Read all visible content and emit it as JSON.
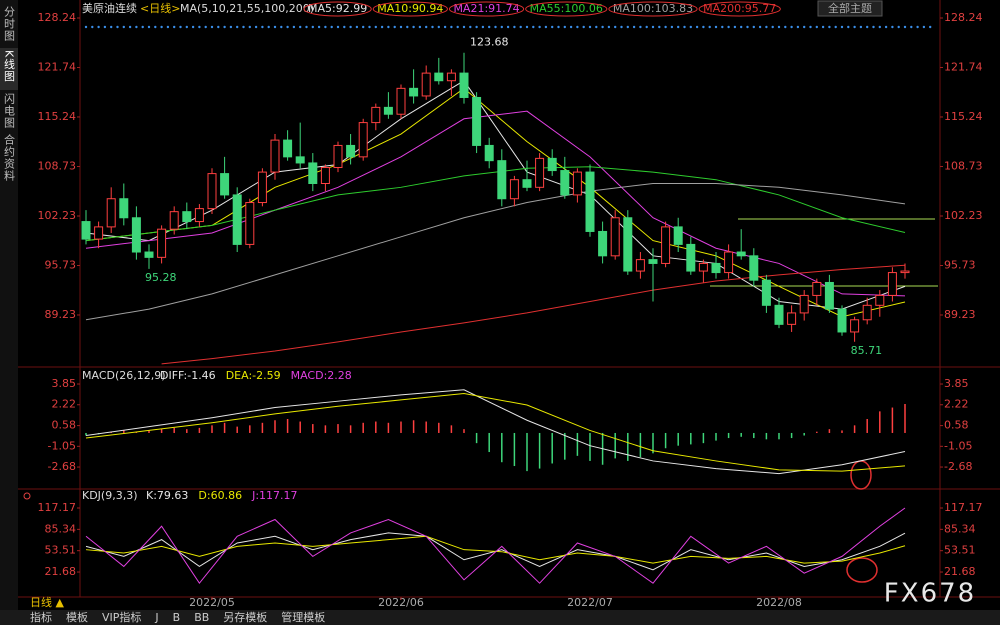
{
  "header": {
    "symbol": "美原油连续",
    "period": "<日线>",
    "indicator": "MA(5,10,21,55,100,200)",
    "theme": "全部主题"
  },
  "sidebar": [
    "分时图",
    "K线图",
    "闪电图",
    "合约资料"
  ],
  "toolbar": [
    "日线 ▲",
    "指标",
    "模板",
    "VIP指标",
    "J",
    "B",
    "BB",
    "另存模板",
    "管理模板"
  ],
  "watermark": "FX678",
  "chart_data": [
    {
      "type": "candlestick",
      "ylim": [
        82.66,
        129.29
      ],
      "yticks": [
        128.24,
        121.74,
        115.24,
        108.73,
        102.23,
        95.73,
        89.23
      ],
      "up_color": "#ff4040",
      "down_color": "#3ed67a",
      "candles": [
        [
          101.5,
          103.0,
          98.5,
          99.2
        ],
        [
          99.2,
          101.5,
          98.0,
          100.8
        ],
        [
          100.8,
          106.0,
          100.0,
          104.5
        ],
        [
          104.5,
          106.5,
          101.0,
          102.0
        ],
        [
          102.0,
          103.5,
          96.5,
          97.5
        ],
        [
          97.5,
          98.5,
          95.28,
          96.8
        ],
        [
          96.8,
          101.0,
          96.0,
          100.5
        ],
        [
          100.5,
          103.5,
          99.8,
          102.8
        ],
        [
          102.8,
          104.0,
          100.5,
          101.5
        ],
        [
          101.5,
          103.8,
          100.8,
          103.2
        ],
        [
          103.2,
          108.5,
          102.5,
          107.8
        ],
        [
          107.8,
          110.0,
          104.5,
          105.0
        ],
        [
          105.0,
          106.0,
          97.5,
          98.5
        ],
        [
          98.5,
          104.5,
          98.0,
          104.0
        ],
        [
          104.0,
          108.5,
          103.5,
          108.0
        ],
        [
          108.0,
          113.0,
          107.0,
          112.2
        ],
        [
          112.2,
          113.5,
          109.5,
          110.0
        ],
        [
          110.0,
          114.5,
          108.5,
          109.2
        ],
        [
          109.2,
          110.5,
          105.5,
          106.5
        ],
        [
          106.5,
          109.0,
          105.5,
          108.6
        ],
        [
          108.6,
          112.0,
          108.0,
          111.5
        ],
        [
          111.5,
          113.0,
          109.0,
          110.0
        ],
        [
          110.0,
          115.0,
          109.5,
          114.5
        ],
        [
          114.5,
          117.0,
          113.5,
          116.5
        ],
        [
          116.5,
          118.5,
          115.0,
          115.6
        ],
        [
          115.6,
          119.5,
          115.0,
          119.0
        ],
        [
          119.0,
          121.5,
          117.0,
          118.0
        ],
        [
          118.0,
          122.0,
          117.5,
          121.0
        ],
        [
          121.0,
          123.0,
          119.5,
          120.0
        ],
        [
          120.0,
          121.5,
          118.0,
          121.0
        ],
        [
          121.0,
          123.68,
          117.0,
          117.8
        ],
        [
          117.8,
          118.5,
          110.5,
          111.5
        ],
        [
          111.5,
          112.5,
          108.5,
          109.5
        ],
        [
          109.5,
          111.0,
          103.5,
          104.5
        ],
        [
          104.5,
          107.5,
          103.5,
          107.0
        ],
        [
          107.0,
          109.5,
          105.5,
          106.0
        ],
        [
          106.0,
          110.5,
          105.5,
          109.8
        ],
        [
          109.8,
          111.0,
          107.5,
          108.2
        ],
        [
          108.2,
          110.0,
          104.5,
          105.0
        ],
        [
          105.0,
          108.5,
          104.0,
          108.0
        ],
        [
          108.0,
          109.0,
          99.5,
          100.2
        ],
        [
          100.2,
          101.5,
          96.0,
          97.0
        ],
        [
          97.0,
          103.0,
          96.5,
          102.0
        ],
        [
          102.0,
          103.0,
          94.5,
          95.0
        ],
        [
          95.0,
          97.5,
          94.0,
          96.5
        ],
        [
          96.5,
          98.0,
          91.0,
          96.0
        ],
        [
          96.0,
          101.5,
          95.5,
          100.8
        ],
        [
          100.8,
          102.0,
          97.5,
          98.5
        ],
        [
          98.5,
          99.5,
          94.5,
          95.0
        ],
        [
          95.0,
          96.5,
          93.5,
          96.0
        ],
        [
          96.0,
          97.5,
          94.0,
          94.8
        ],
        [
          94.8,
          98.5,
          94.0,
          97.5
        ],
        [
          97.5,
          100.5,
          96.5,
          97.0
        ],
        [
          97.0,
          98.0,
          93.0,
          93.8
        ],
        [
          93.8,
          94.5,
          89.5,
          90.5
        ],
        [
          90.5,
          91.5,
          87.5,
          88.0
        ],
        [
          88.0,
          90.5,
          87.0,
          89.5
        ],
        [
          89.5,
          92.5,
          88.5,
          91.8
        ],
        [
          91.8,
          94.0,
          90.5,
          93.5
        ],
        [
          93.5,
          94.5,
          89.5,
          90.0
        ],
        [
          90.0,
          90.5,
          86.5,
          87.0
        ],
        [
          87.0,
          89.0,
          85.71,
          88.6
        ],
        [
          88.6,
          91.5,
          88.0,
          90.5
        ],
        [
          90.5,
          92.5,
          89.0,
          91.8
        ],
        [
          91.8,
          95.5,
          91.0,
          94.8
        ],
        [
          94.8,
          96.0,
          94.0,
          95.0
        ]
      ],
      "series": [
        {
          "name": "MA5:92.99",
          "color": "#e6e6e6",
          "x": [
            0,
            5,
            10,
            15,
            20,
            25,
            30,
            35,
            40,
            45,
            50,
            55,
            60,
            65
          ],
          "values": [
            100,
            99,
            103,
            108,
            109,
            115,
            120,
            108,
            105,
            97,
            96,
            91,
            90,
            92.99
          ]
        },
        {
          "name": "MA10:90.94",
          "color": "#e8e800",
          "x": [
            0,
            5,
            10,
            15,
            20,
            25,
            30,
            35,
            40,
            45,
            50,
            55,
            60,
            65
          ],
          "values": [
            99,
            100,
            101,
            106,
            109,
            113,
            119,
            112,
            106,
            99,
            97,
            93,
            89,
            90.94
          ]
        },
        {
          "name": "MA21:91.74",
          "color": "#e040e0",
          "x": [
            0,
            5,
            10,
            15,
            20,
            25,
            30,
            35,
            40,
            45,
            50,
            55,
            60,
            65
          ],
          "values": [
            98,
            99,
            100,
            103,
            106,
            110,
            115,
            116,
            110,
            102,
            98,
            96,
            92,
            91.74
          ]
        },
        {
          "name": "MA55:100.06",
          "color": "#2ecc2e",
          "x": [
            0,
            5,
            10,
            15,
            20,
            25,
            30,
            35,
            40,
            45,
            50,
            55,
            60,
            65
          ],
          "values": [
            99,
            100,
            101,
            103,
            105,
            106,
            107.5,
            108.5,
            108.7,
            108,
            107,
            105,
            102,
            100.06
          ]
        },
        {
          "name": "MA100:103.83",
          "color": "#a0a0a0",
          "x": [
            0,
            5,
            10,
            15,
            20,
            25,
            30,
            35,
            40,
            45,
            50,
            55,
            60,
            65
          ],
          "values": [
            88.6,
            90,
            92,
            94.5,
            97,
            99.5,
            102,
            104,
            105.5,
            106.5,
            106.5,
            106,
            105,
            103.83
          ]
        },
        {
          "name": "MA200:95.77",
          "color": "#e03030",
          "x": [
            6,
            10,
            15,
            20,
            25,
            30,
            35,
            40,
            45,
            50,
            55,
            60,
            65
          ],
          "values": [
            82.8,
            83.5,
            84.5,
            85.7,
            87,
            88.2,
            89.5,
            91,
            92.5,
            93.7,
            94.5,
            95.2,
            95.77
          ]
        }
      ]
    },
    {
      "type": "combo",
      "title": "MACD(26,12,9)",
      "ylim": [
        -4.25,
        4.56
      ],
      "yticks": [
        3.85,
        2.22,
        0.58,
        -1.05,
        -2.68
      ],
      "bars": {
        "name": "MACD:2.28",
        "color": "#e040e0",
        "up_color": "#ff4040",
        "down_color": "#3ed67a",
        "values": [
          -0.2,
          -0.1,
          0.1,
          0.2,
          0.1,
          0.2,
          0.3,
          0.4,
          0.3,
          0.4,
          0.6,
          0.8,
          0.5,
          0.6,
          0.8,
          1.0,
          1.1,
          0.9,
          0.7,
          0.6,
          0.7,
          0.6,
          0.8,
          0.9,
          0.8,
          0.9,
          1.0,
          0.9,
          0.8,
          0.6,
          0.3,
          -0.8,
          -1.5,
          -2.3,
          -2.6,
          -3.0,
          -2.8,
          -2.4,
          -2.1,
          -1.8,
          -2.2,
          -2.5,
          -2.0,
          -2.2,
          -1.9,
          -1.6,
          -1.2,
          -1.0,
          -0.9,
          -0.8,
          -0.6,
          -0.4,
          -0.3,
          -0.4,
          -0.5,
          -0.5,
          -0.4,
          -0.2,
          0.1,
          0.3,
          0.2,
          0.6,
          1.1,
          1.7,
          2.0,
          2.28
        ]
      },
      "series": [
        {
          "name": "DIFF:-1.46",
          "color": "#e6e6e6",
          "x": [
            0,
            5,
            10,
            15,
            20,
            25,
            30,
            35,
            40,
            45,
            50,
            55,
            60,
            65
          ],
          "values": [
            -0.2,
            0.5,
            1.2,
            2.0,
            2.5,
            3.0,
            3.4,
            1.0,
            -1.0,
            -2.2,
            -2.8,
            -3.2,
            -2.5,
            -1.46
          ]
        },
        {
          "name": "DEA:-2.59",
          "color": "#e8e800",
          "x": [
            0,
            5,
            10,
            15,
            20,
            25,
            30,
            35,
            40,
            45,
            50,
            55,
            60,
            65
          ],
          "values": [
            -0.4,
            0.2,
            0.8,
            1.5,
            2.1,
            2.6,
            3.1,
            2.2,
            0.2,
            -1.4,
            -2.2,
            -2.9,
            -3.0,
            -2.59
          ]
        }
      ]
    },
    {
      "type": "line",
      "title": "KDJ(9,3,3)",
      "ylim": [
        -12.6,
        133.6
      ],
      "yticks": [
        117.17,
        85.34,
        53.51,
        21.68
      ],
      "xticks": [
        {
          "value": 10,
          "label": "2022/05"
        },
        {
          "value": 25,
          "label": "2022/06"
        },
        {
          "value": 40,
          "label": "2022/07"
        },
        {
          "value": 55,
          "label": "2022/08"
        }
      ],
      "series": [
        {
          "name": "K:79.63",
          "color": "#e6e6e6",
          "x": [
            0,
            3,
            6,
            9,
            12,
            15,
            18,
            21,
            24,
            27,
            30,
            33,
            36,
            39,
            42,
            45,
            48,
            51,
            54,
            57,
            60,
            63,
            65
          ],
          "values": [
            60,
            45,
            70,
            30,
            65,
            75,
            55,
            70,
            80,
            75,
            40,
            55,
            30,
            55,
            45,
            25,
            55,
            40,
            50,
            30,
            40,
            60,
            79.63
          ]
        },
        {
          "name": "D:60.86",
          "color": "#e8e800",
          "x": [
            0,
            3,
            6,
            9,
            12,
            15,
            18,
            21,
            24,
            27,
            30,
            33,
            36,
            39,
            42,
            45,
            48,
            51,
            54,
            57,
            60,
            63,
            65
          ],
          "values": [
            55,
            50,
            60,
            45,
            60,
            65,
            60,
            65,
            70,
            75,
            55,
            52,
            40,
            50,
            45,
            35,
            45,
            42,
            45,
            35,
            38,
            50,
            60.86
          ]
        },
        {
          "name": "J:117.17",
          "color": "#e040e0",
          "x": [
            0,
            3,
            6,
            9,
            12,
            15,
            18,
            21,
            24,
            27,
            30,
            33,
            36,
            39,
            42,
            45,
            48,
            51,
            54,
            57,
            60,
            63,
            65
          ],
          "values": [
            75,
            30,
            90,
            5,
            75,
            100,
            45,
            80,
            100,
            75,
            10,
            60,
            5,
            65,
            45,
            5,
            75,
            35,
            60,
            20,
            45,
            90,
            117.17
          ]
        }
      ]
    }
  ]
}
